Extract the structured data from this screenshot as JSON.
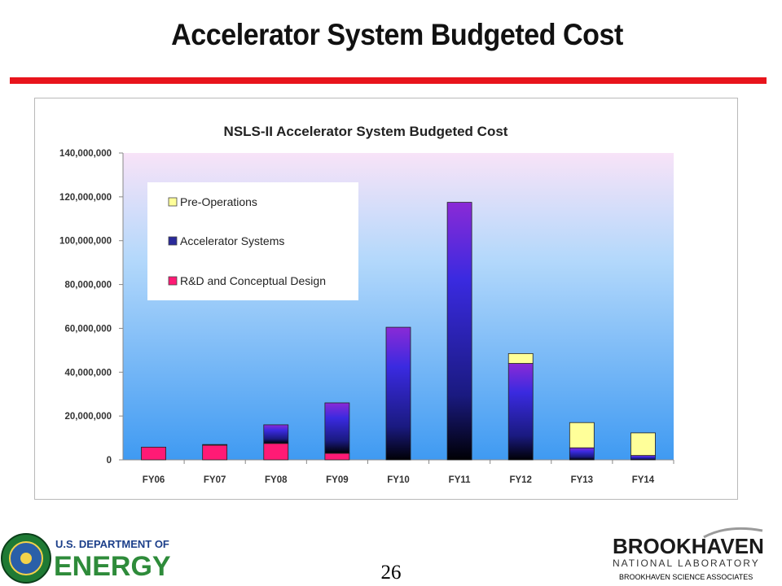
{
  "slide": {
    "title": "Accelerator System Budgeted Cost",
    "page_number": "26"
  },
  "footer": {
    "doe_line1": "U.S. DEPARTMENT OF",
    "doe_line2": "ENERGY",
    "bnl_line1": "BROOKHAVEN",
    "bnl_line2": "NATIONAL LABORATORY",
    "bnl_line3": "BROOKHAVEN SCIENCE ASSOCIATES"
  },
  "colors": {
    "title_rule": "#e8141c",
    "pre_operations": "#ffff99",
    "accelerator_systems": "#2a2a9a",
    "rd_conceptual": "#ff1a75"
  },
  "chart_data": {
    "type": "bar",
    "stacked": true,
    "title": "NSLS-II Accelerator System Budgeted Cost",
    "xlabel": "",
    "ylabel": "",
    "ylim": [
      0,
      140000000
    ],
    "yticks": [
      "0",
      "20,000,000",
      "40,000,000",
      "60,000,000",
      "80,000,000",
      "100,000,000",
      "120,000,000",
      "140,000,000"
    ],
    "grid": false,
    "legend_position": "top-left",
    "categories": [
      "FY06",
      "FY07",
      "FY08",
      "FY09",
      "FY10",
      "FY11",
      "FY12",
      "FY13",
      "FY14"
    ],
    "series": [
      {
        "name": "R&D and Conceptual Design",
        "values": [
          5800000,
          6700000,
          7500000,
          3000000,
          0,
          0,
          0,
          0,
          0
        ]
      },
      {
        "name": "Accelerator Systems",
        "values": [
          0,
          300000,
          8500000,
          23000000,
          60500000,
          117500000,
          44000000,
          5500000,
          2000000
        ]
      },
      {
        "name": "Pre-Operations",
        "values": [
          0,
          0,
          0,
          0,
          0,
          0,
          4500000,
          11500000,
          10300000
        ]
      }
    ]
  }
}
